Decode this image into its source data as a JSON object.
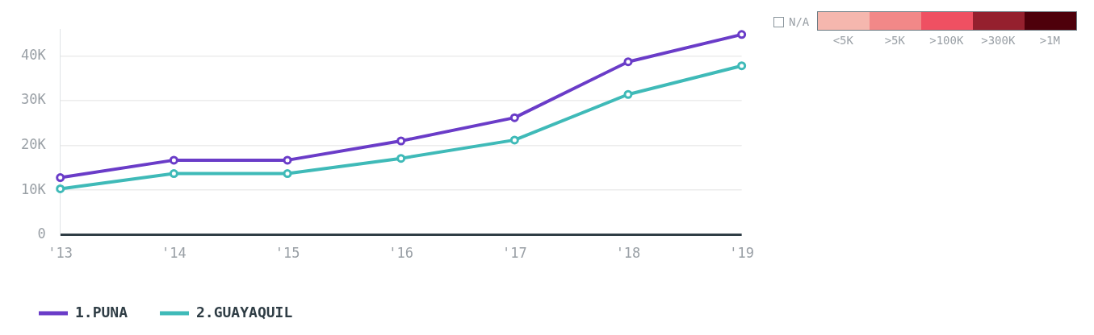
{
  "chart_data": {
    "type": "line",
    "categories": [
      "'13",
      "'14",
      "'15",
      "'16",
      "'17",
      "'18",
      "'19"
    ],
    "series": [
      {
        "name": "1.PUNA",
        "color": "#6a3cc8",
        "values": [
          12800,
          16700,
          16700,
          21000,
          26200,
          38700,
          44800
        ]
      },
      {
        "name": "2.GUAYAQUIL",
        "color": "#3fbab8",
        "values": [
          10300,
          13700,
          13700,
          17100,
          21200,
          31400,
          37800
        ]
      }
    ],
    "ylim": [
      0,
      46000
    ],
    "yticks": [
      0,
      {
        "value": 10000,
        "label": "10K"
      },
      {
        "value": 20000,
        "label": "20K"
      },
      {
        "value": 30000,
        "label": "30K"
      },
      {
        "value": 40000,
        "label": "40K"
      }
    ],
    "grid": "y",
    "legend": "bottom left",
    "marker": "circle",
    "line_style": "solid",
    "annotations": [
      "N/A",
      "<5K",
      ">5K",
      ">100K",
      ">300K",
      ">1M"
    ]
  }
}
